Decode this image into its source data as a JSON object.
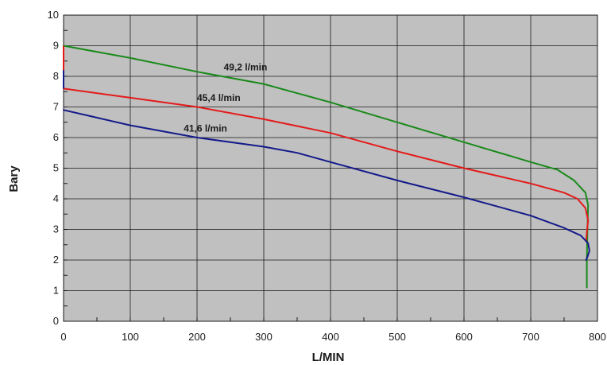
{
  "chart_data": {
    "type": "line",
    "title": "",
    "xlabel": "L/MIN",
    "ylabel": "Bary",
    "xlim": [
      0,
      800
    ],
    "ylim": [
      0,
      10
    ],
    "x_ticks": [
      "0",
      "100",
      "200",
      "300",
      "400",
      "500",
      "600",
      "700",
      "800"
    ],
    "y_ticks": [
      "0",
      "1",
      "2",
      "3",
      "4",
      "5",
      "6",
      "7",
      "8",
      "9",
      "10"
    ],
    "grid": true,
    "plot_background": "#c0c0c0",
    "series": [
      {
        "name": "49,2 l/min",
        "color": "#1a8a1a",
        "points": [
          [
            0,
            9.0
          ],
          [
            100,
            8.6
          ],
          [
            200,
            8.15
          ],
          [
            300,
            7.75
          ],
          [
            400,
            7.15
          ],
          [
            500,
            6.5
          ],
          [
            600,
            5.85
          ],
          [
            700,
            5.2
          ],
          [
            740,
            4.95
          ],
          [
            765,
            4.6
          ],
          [
            782,
            4.2
          ],
          [
            786,
            3.8
          ],
          [
            785,
            3.0
          ],
          [
            784,
            2.0
          ],
          [
            784,
            1.1
          ]
        ]
      },
      {
        "name": "45,4 l/min",
        "color": "#e41a1a",
        "points": [
          [
            0,
            7.6
          ],
          [
            100,
            7.3
          ],
          [
            200,
            7.0
          ],
          [
            300,
            6.6
          ],
          [
            400,
            6.15
          ],
          [
            500,
            5.55
          ],
          [
            600,
            5.0
          ],
          [
            700,
            4.5
          ],
          [
            750,
            4.2
          ],
          [
            770,
            4.0
          ],
          [
            782,
            3.7
          ],
          [
            786,
            3.3
          ],
          [
            784,
            2.9
          ],
          [
            783,
            2.6
          ]
        ]
      },
      {
        "name": "41,6 l/min",
        "color": "#141a8a",
        "points": [
          [
            0,
            6.9
          ],
          [
            100,
            6.4
          ],
          [
            200,
            6.0
          ],
          [
            300,
            5.7
          ],
          [
            350,
            5.5
          ],
          [
            400,
            5.2
          ],
          [
            500,
            4.6
          ],
          [
            600,
            4.05
          ],
          [
            700,
            3.45
          ],
          [
            750,
            3.05
          ],
          [
            775,
            2.8
          ],
          [
            786,
            2.55
          ],
          [
            788,
            2.3
          ],
          [
            785,
            2.1
          ],
          [
            783,
            2.0
          ]
        ]
      }
    ],
    "vertical_segments": [
      {
        "x": 0,
        "y_from": 8.0,
        "y_to": 9.0,
        "color": "#e41a1a"
      },
      {
        "x": 0,
        "y_from": 7.6,
        "y_to": 8.2,
        "color": "#141a8a"
      }
    ],
    "series_labels": [
      {
        "text": "49,2 l/min",
        "x": 240,
        "y": 8.2
      },
      {
        "text": "45,4 l/min",
        "x": 200,
        "y": 7.2
      },
      {
        "text": "41,6 l/min",
        "x": 180,
        "y": 6.2
      }
    ]
  }
}
